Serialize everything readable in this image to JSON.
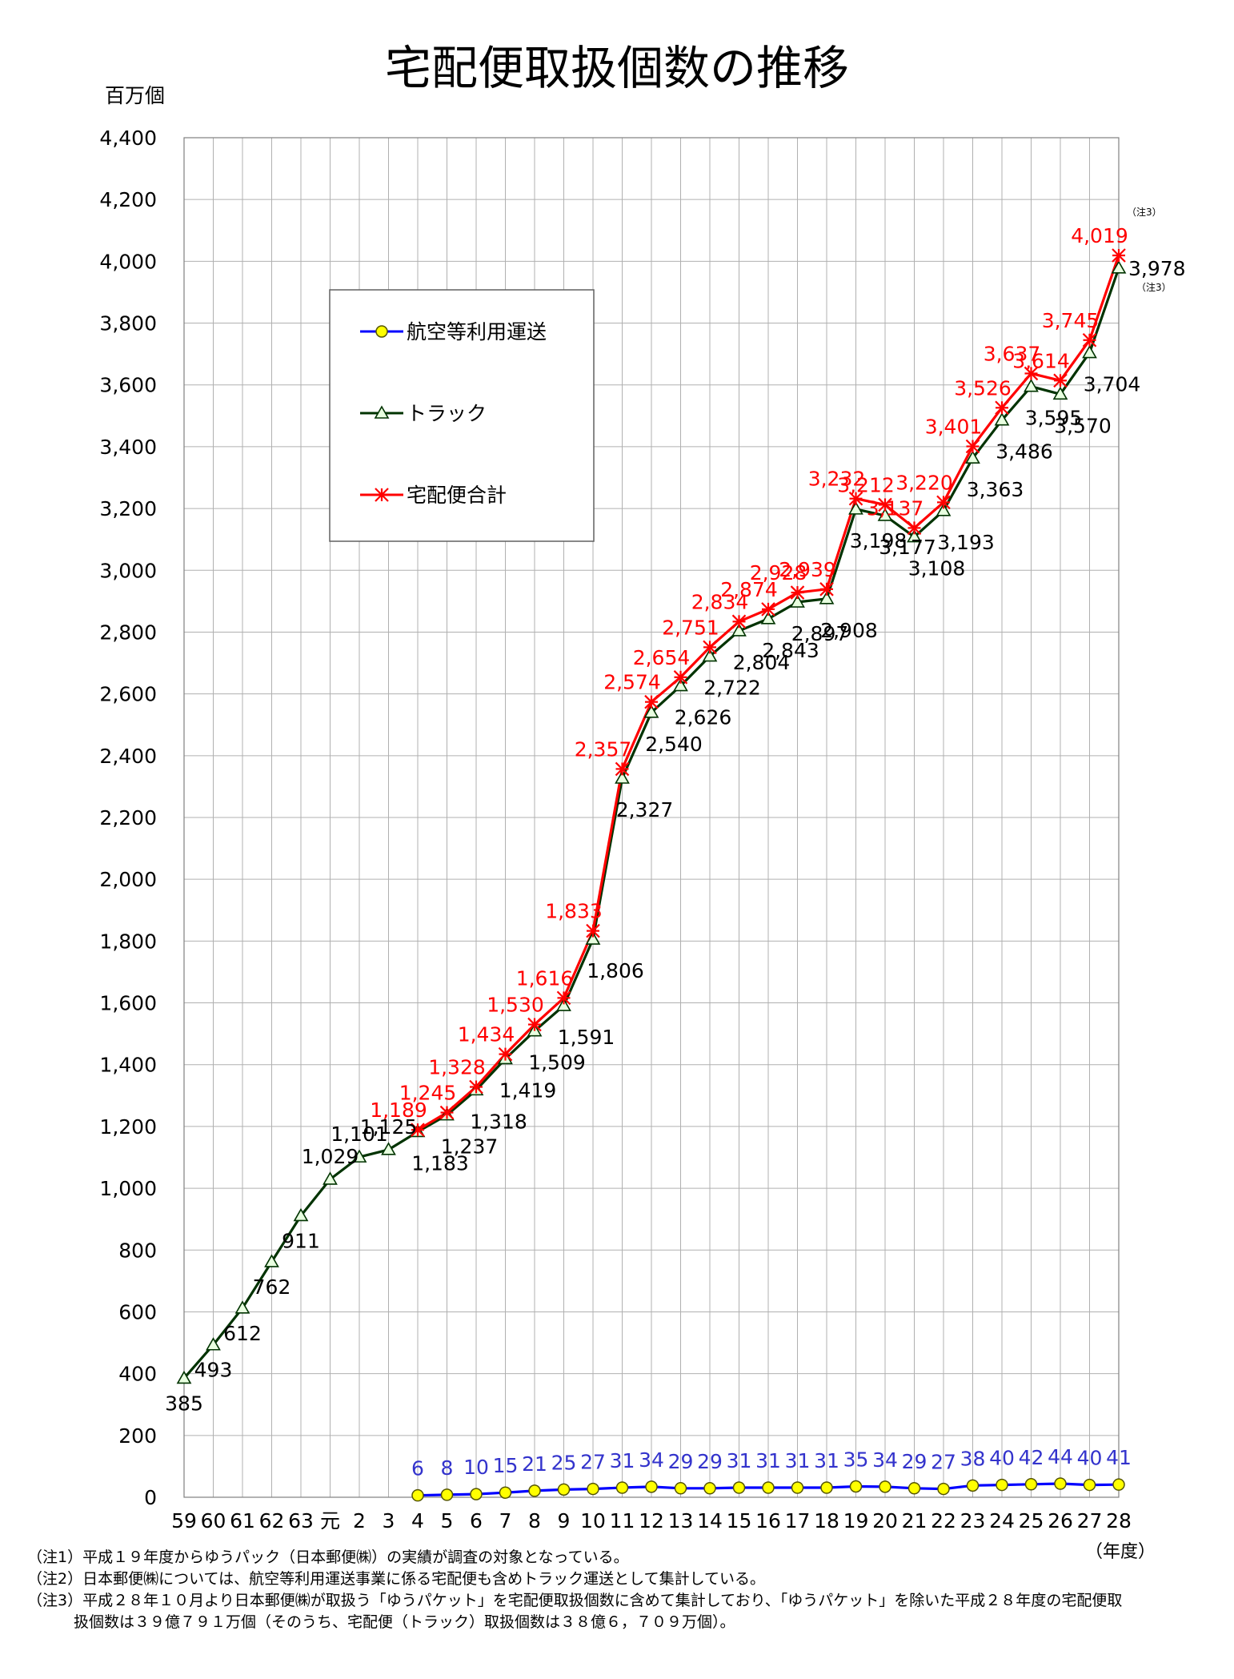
{
  "chart_data": {
    "type": "line",
    "title": "宅配便取扱個数の推移",
    "ylabel": "百万個",
    "xlabel": "（年度）",
    "ylim": [
      0,
      4400
    ],
    "yticks": [
      0,
      200,
      400,
      600,
      800,
      1000,
      1200,
      1400,
      1600,
      1800,
      2000,
      2200,
      2400,
      2600,
      2800,
      3000,
      3200,
      3400,
      3600,
      3800,
      4000,
      4200,
      4400
    ],
    "ytick_labels": [
      "0",
      "200",
      "400",
      "600",
      "800",
      "1,000",
      "1,200",
      "1,400",
      "1,600",
      "1,800",
      "2,000",
      "2,200",
      "2,400",
      "2,600",
      "2,800",
      "3,000",
      "3,200",
      "3,400",
      "3,600",
      "3,800",
      "4,000",
      "4,200",
      "4,400"
    ],
    "grid": true,
    "categories": [
      "59",
      "60",
      "61",
      "62",
      "63",
      "元",
      "2",
      "3",
      "4",
      "5",
      "6",
      "7",
      "8",
      "9",
      "10",
      "11",
      "12",
      "13",
      "14",
      "15",
      "16",
      "17",
      "18",
      "19",
      "20",
      "21",
      "22",
      "23",
      "24",
      "25",
      "26",
      "27",
      "28"
    ],
    "series": [
      {
        "name": "航空等利用運送",
        "color": "#0000ff",
        "marker": "circle",
        "marker_fill": "#ffff00",
        "label_color": "#3333cc",
        "values": [
          null,
          null,
          null,
          null,
          null,
          null,
          null,
          null,
          6,
          8,
          10,
          15,
          21,
          25,
          27,
          31,
          34,
          29,
          29,
          31,
          31,
          31,
          31,
          35,
          34,
          29,
          27,
          38,
          40,
          42,
          44,
          40,
          41
        ],
        "labels": [
          "",
          "",
          "",
          "",
          "",
          "",
          "",
          "",
          "6",
          "8",
          "10",
          "15",
          "21",
          "25",
          "27",
          "31",
          "34",
          "29",
          "29",
          "31",
          "31",
          "31",
          "31",
          "35",
          "34",
          "29",
          "27",
          "38",
          "40",
          "42",
          "44",
          "40",
          "41"
        ]
      },
      {
        "name": "トラック",
        "color": "#003300",
        "marker": "triangle",
        "label_color": "#000000",
        "values": [
          385,
          493,
          612,
          762,
          911,
          1029,
          1101,
          1125,
          1183,
          1237,
          1318,
          1419,
          1509,
          1591,
          1806,
          2327,
          2540,
          2626,
          2722,
          2804,
          2843,
          2897,
          2908,
          3198,
          3177,
          3108,
          3193,
          3363,
          3486,
          3595,
          3570,
          3704,
          3978
        ],
        "labels": [
          "385",
          "493",
          "612",
          "762",
          "911",
          "1,029",
          "1,101",
          "1,125",
          "1,183",
          "1,237",
          "1,318",
          "1,419",
          "1,509",
          "1,591",
          "1,806",
          "2,327",
          "2,540",
          "2,626",
          "2,722",
          "2,804",
          "2,843",
          "2,897",
          "2,908",
          "3,198",
          "3,177",
          "3,108",
          "3,193",
          "3,363",
          "3,486",
          "3,595",
          "3,570",
          "3,704",
          "3,978"
        ]
      },
      {
        "name": "宅配便合計",
        "color": "#ff0000",
        "marker": "asterisk",
        "label_color": "#ff0000",
        "values": [
          null,
          null,
          null,
          null,
          null,
          null,
          null,
          null,
          1189,
          1245,
          1328,
          1434,
          1530,
          1616,
          1833,
          2357,
          2574,
          2654,
          2751,
          2834,
          2874,
          2928,
          2939,
          3232,
          3212,
          3137,
          3220,
          3401,
          3526,
          3637,
          3614,
          3745,
          4019
        ],
        "labels": [
          "",
          "",
          "",
          "",
          "",
          "",
          "",
          "",
          "1,189",
          "1,245",
          "1,328",
          "1,434",
          "1,530",
          "1,616",
          "1,833",
          "2,357",
          "2,574",
          "2,654",
          "2,751",
          "2,834",
          "2,874",
          "2,928",
          "2,939",
          "3,232",
          "3,212",
          "3,137",
          "3,220",
          "3,401",
          "3,526",
          "3,637",
          "3,614",
          "3,745",
          "4,019"
        ]
      }
    ],
    "annotations": [
      {
        "text": "（注3）",
        "series": "宅配便合計",
        "category": "28"
      },
      {
        "text": "（注3）",
        "series": "トラック",
        "category": "28"
      }
    ],
    "legend": {
      "placement": "top-left",
      "entries": [
        "航空等利用運送",
        "トラック",
        "宅配便合計"
      ]
    }
  },
  "notes": [
    "（注1）平成１９年度からゆうパック（日本郵便㈱）の実績が調査の対象となっている。",
    "（注2）日本郵便㈱については、航空等利用運送事業に係る宅配便も含めトラック運送として集計している。",
    "（注3）平成２８年１０月より日本郵便㈱が取扱う「ゆうパケット」を宅配便取扱個数に含めて集計しており、「ゆうパケット」を除いた平成２８年度の宅配便取",
    "扱個数は３９億７９１万個（そのうち、宅配便（トラック）取扱個数は３８億６，７０９万個）。"
  ]
}
